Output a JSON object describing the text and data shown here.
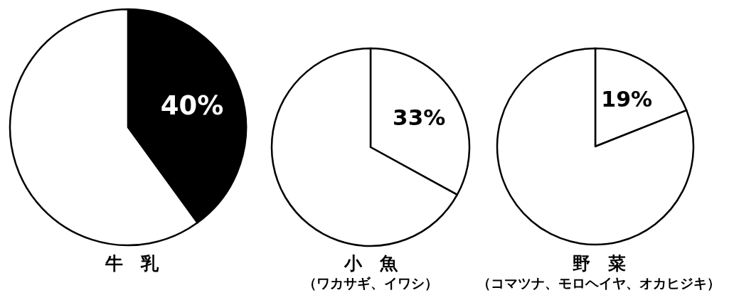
{
  "chart_data": [
    {
      "type": "pie",
      "title": "牛　乳",
      "categories": [
        null,
        null
      ],
      "values": [
        40,
        60
      ],
      "colors": [
        "#000000",
        "#ffffff"
      ],
      "value_labels": [
        "40%",
        null
      ]
    },
    {
      "type": "pie",
      "title": "小　魚",
      "subtitle": "（ワカサギ、イワシ）",
      "categories": [
        null,
        null
      ],
      "values": [
        33,
        67
      ],
      "colors": [
        "#ffffff",
        "#ffffff"
      ],
      "value_labels": [
        "33%",
        null
      ]
    },
    {
      "type": "pie",
      "title": "野　菜",
      "subtitle": "（コマツナ、モロヘイヤ、オカヒジキ）",
      "categories": [
        null,
        null
      ],
      "values": [
        19,
        81
      ],
      "colors": [
        "#ffffff",
        "#ffffff"
      ],
      "value_labels": [
        "19%",
        null
      ]
    }
  ]
}
